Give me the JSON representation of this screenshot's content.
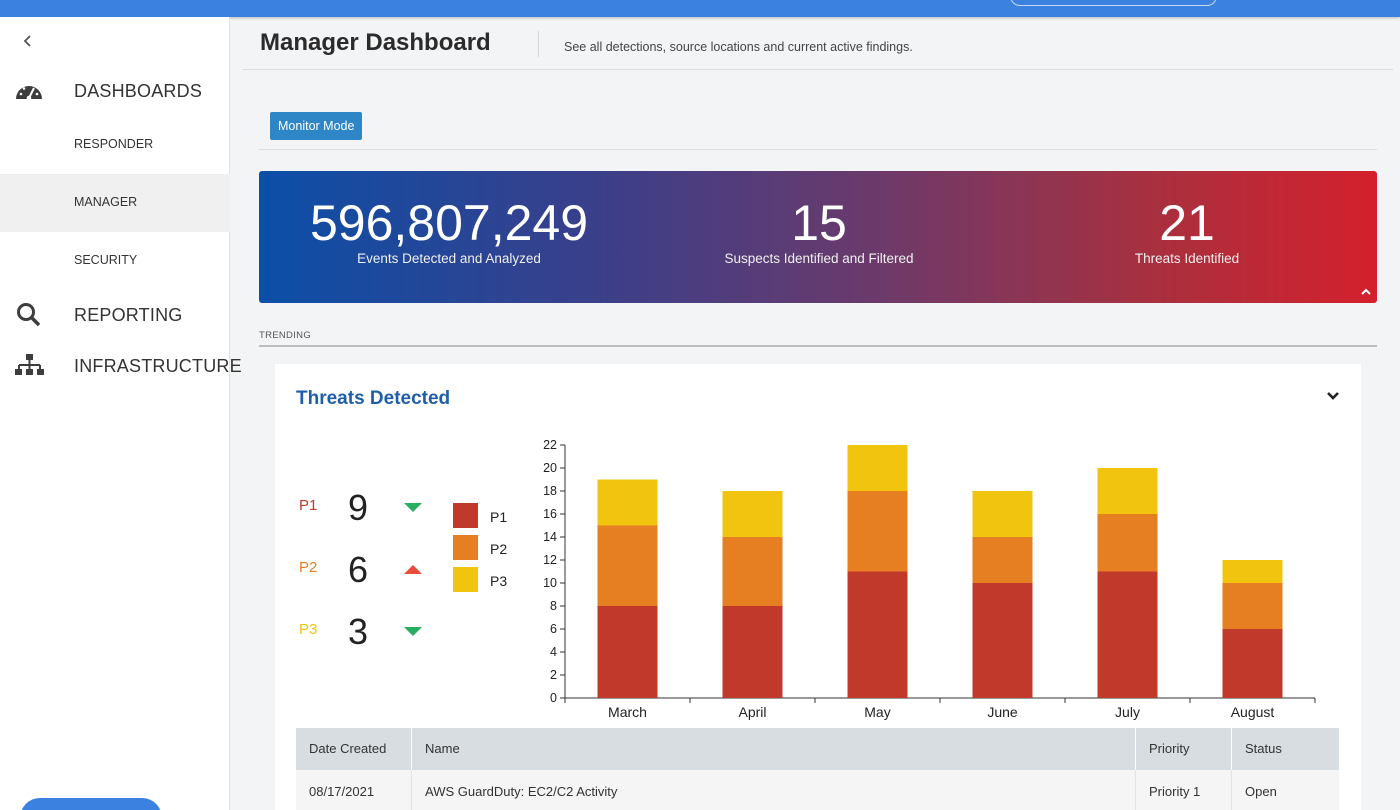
{
  "sidebar": {
    "back_icon": "chevron-left-icon",
    "items": [
      {
        "label": "DASHBOARDS",
        "icon": "speedometer-icon"
      },
      {
        "label": "RESPONDER"
      },
      {
        "label": "MANAGER",
        "active": true
      },
      {
        "label": "SECURITY"
      },
      {
        "label": "REPORTING",
        "icon": "search-icon"
      },
      {
        "label": "INFRASTRUCTURE",
        "icon": "sitemap-icon"
      }
    ]
  },
  "header": {
    "title": "Manager Dashboard",
    "subtitle": "See all detections, source locations and current active findings."
  },
  "monitor_button": "Monitor Mode",
  "stats": [
    {
      "value": "596,807,249",
      "caption": "Events Detected and Analyzed"
    },
    {
      "value": "15",
      "caption": "Suspects Identified and Filtered"
    },
    {
      "value": "21",
      "caption": "Threats Identified"
    }
  ],
  "trending_label": "TRENDING",
  "card": {
    "title": "Threats Detected",
    "priorities": [
      {
        "label": "P1",
        "count": "9",
        "trend": "down",
        "color": "#c0392b"
      },
      {
        "label": "P2",
        "count": "6",
        "trend": "up",
        "color": "#e67e22"
      },
      {
        "label": "P3",
        "count": "3",
        "trend": "down",
        "color": "#f1c40f"
      }
    ],
    "legend": [
      {
        "label": "P1",
        "color": "#c0392b"
      },
      {
        "label": "P2",
        "color": "#e67e22"
      },
      {
        "label": "P3",
        "color": "#f1c40f"
      }
    ]
  },
  "chart_data": {
    "type": "bar",
    "stacked": true,
    "categories": [
      "March",
      "April",
      "May",
      "June",
      "July",
      "August"
    ],
    "series": [
      {
        "name": "P1",
        "color": "#c0392b",
        "values": [
          8,
          8,
          11,
          10,
          11,
          6
        ]
      },
      {
        "name": "P2",
        "color": "#e67e22",
        "values": [
          7,
          6,
          7,
          4,
          5,
          4
        ]
      },
      {
        "name": "P3",
        "color": "#f1c40f",
        "values": [
          4,
          4,
          4,
          4,
          4,
          2
        ]
      }
    ],
    "ylim": [
      0,
      22
    ],
    "yticks": [
      0,
      2,
      4,
      6,
      8,
      10,
      12,
      14,
      16,
      18,
      20,
      22
    ],
    "grid": false,
    "legend_placement": "left"
  },
  "table": {
    "columns": [
      "Date Created",
      "Name",
      "Priority",
      "Status"
    ],
    "rows": [
      [
        "08/17/2021",
        "AWS GuardDuty: EC2/C2 Activity",
        "Priority 1",
        "Open"
      ]
    ]
  },
  "colors": {
    "accent": "#3b82e0",
    "up": "#e74c3c",
    "down": "#27ae60"
  }
}
